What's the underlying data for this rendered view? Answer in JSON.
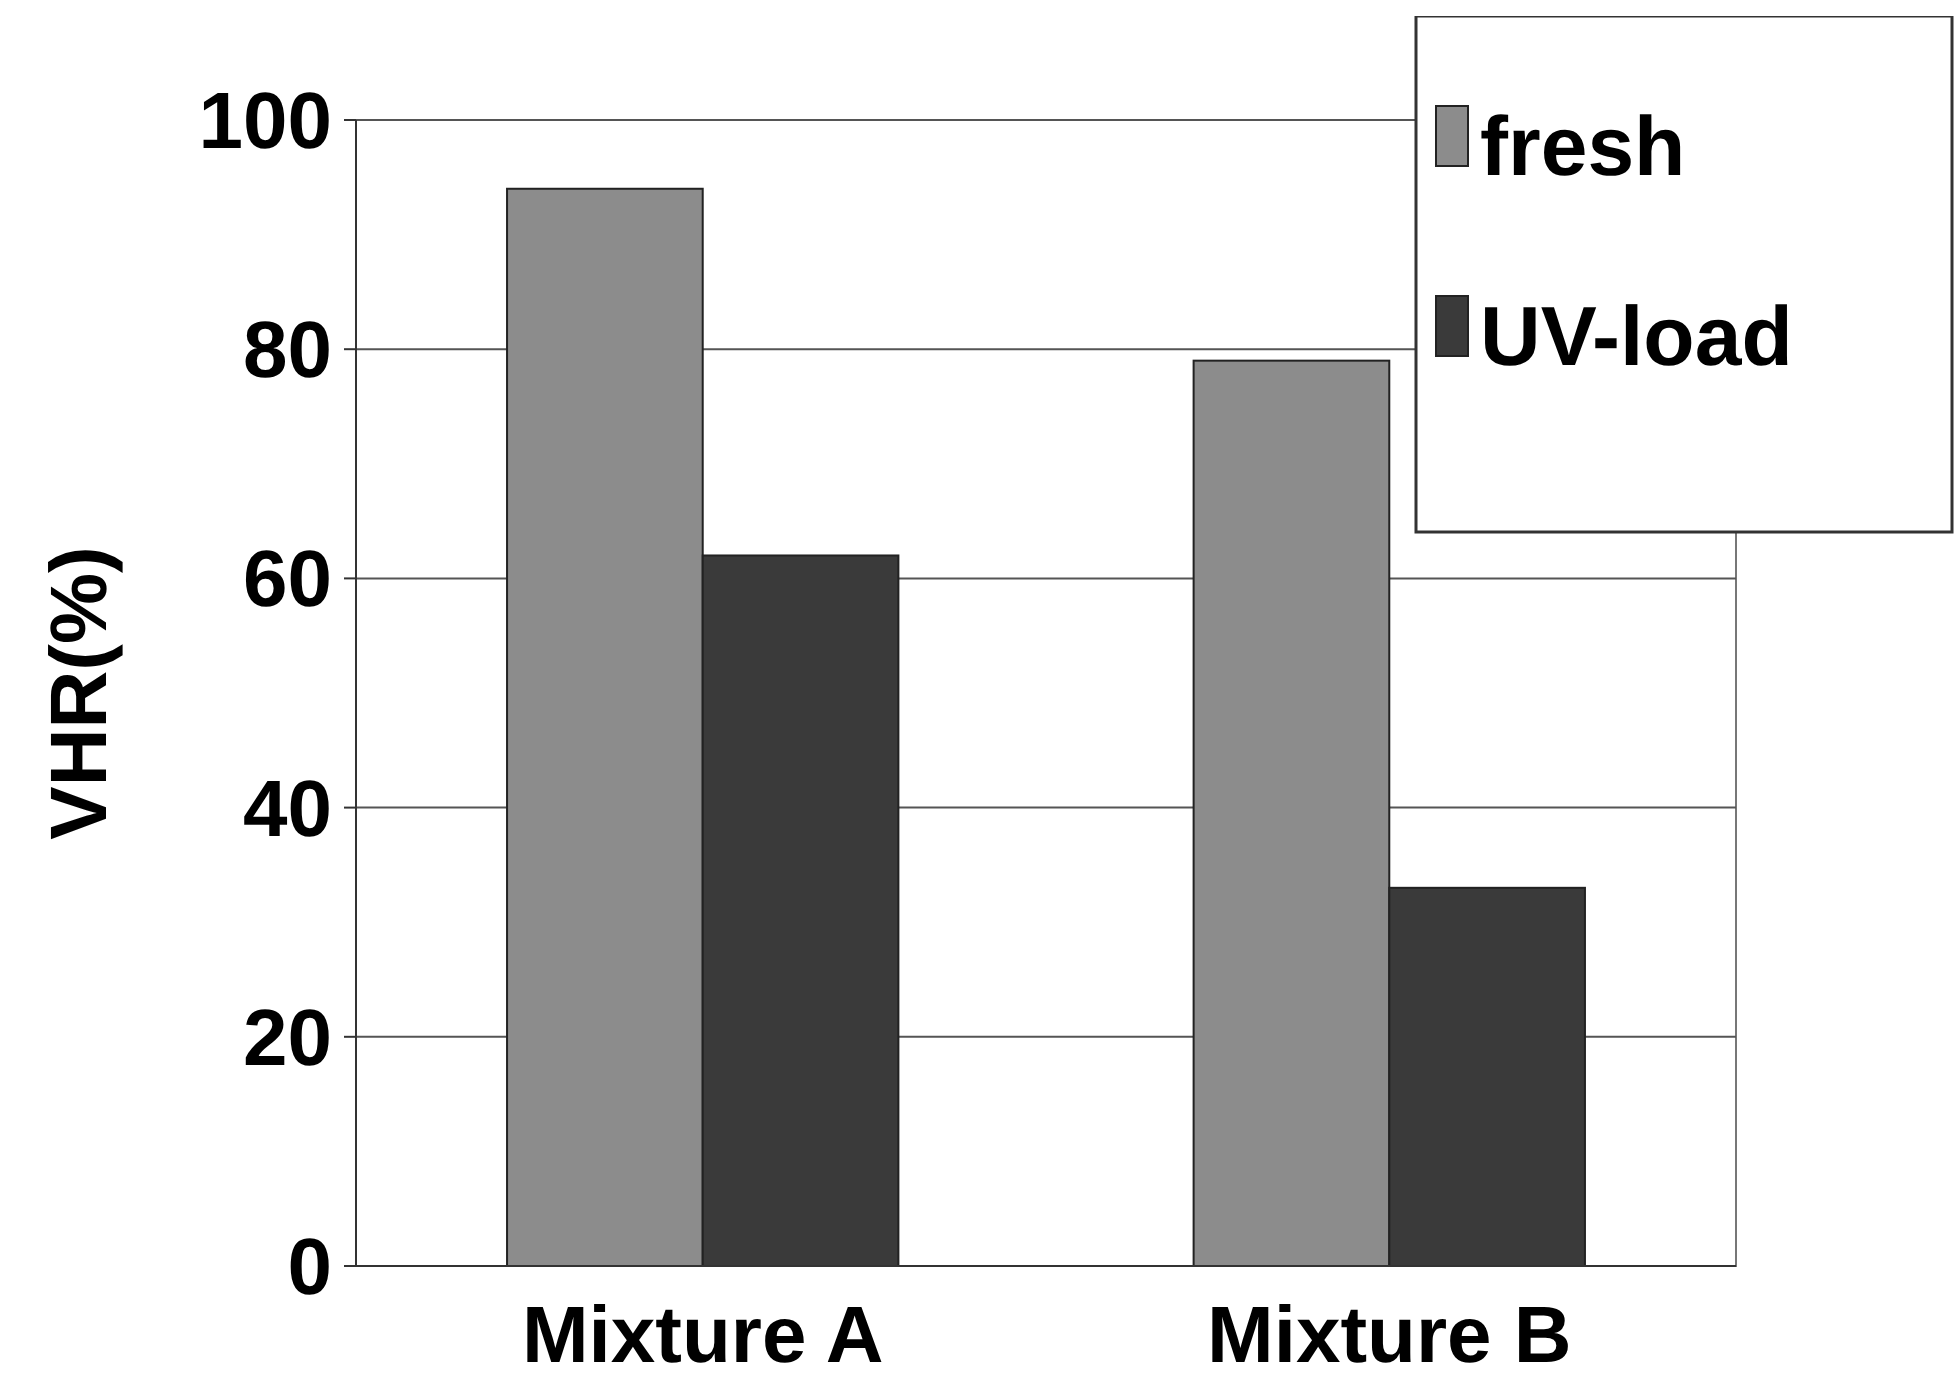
{
  "chart_data": {
    "type": "bar",
    "ylabel": "VHR(%)",
    "categories": [
      "Mixture A",
      "Mixture B"
    ],
    "series": [
      {
        "name": "fresh",
        "color": "#8c8c8c",
        "values": [
          94,
          79
        ]
      },
      {
        "name": "UV-load",
        "color": "#3a3a3a",
        "values": [
          62,
          33
        ]
      }
    ],
    "ylim": [
      0,
      100
    ],
    "yticks": [
      0,
      20,
      40,
      60,
      80,
      100
    ],
    "grid": "y",
    "legend": "top right"
  }
}
